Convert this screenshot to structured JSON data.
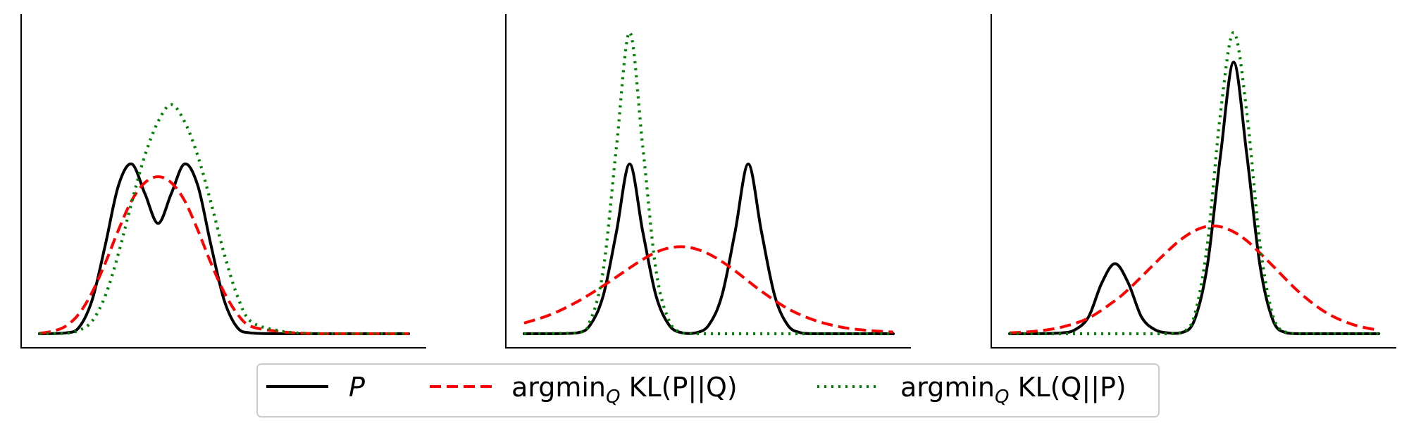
{
  "chart_data": [
    {
      "type": "line",
      "xlim": [
        -4,
        10
      ],
      "ylim": [
        0,
        0.72
      ],
      "grid": false,
      "axis_ticks": false,
      "series": [
        {
          "key": "P",
          "name": "P",
          "color": "#000000",
          "style": "solid",
          "x": [
            -4,
            -3,
            -2.5,
            -2,
            -1.5,
            -1,
            -0.5,
            0,
            0.5,
            1,
            1.5,
            2,
            2.5,
            3,
            3.5,
            4,
            5,
            6,
            7,
            8,
            9,
            10
          ],
          "y": [
            0,
            0.002,
            0.015,
            0.08,
            0.21,
            0.35,
            0.4,
            0.33,
            0.26,
            0.33,
            0.4,
            0.35,
            0.21,
            0.08,
            0.015,
            0.002,
            0,
            0,
            0,
            0,
            0,
            0
          ]
        },
        {
          "key": "PQ",
          "name": "argmin_Q KL(P||Q)",
          "color": "#ff0000",
          "style": "dashed",
          "x": [
            -4,
            -3.5,
            -3,
            -2.5,
            -2,
            -1.5,
            -1,
            -0.5,
            0,
            0.5,
            1,
            1.5,
            2,
            2.5,
            3,
            3.5,
            4,
            5,
            6,
            7,
            8,
            9,
            10
          ],
          "y": [
            0.001,
            0.006,
            0.018,
            0.047,
            0.098,
            0.167,
            0.245,
            0.314,
            0.356,
            0.37,
            0.356,
            0.314,
            0.245,
            0.167,
            0.098,
            0.047,
            0.018,
            0.006,
            0.001,
            0,
            0,
            0,
            0
          ]
        },
        {
          "key": "QP",
          "name": "argmin_Q KL(Q||P)",
          "color": "#008000",
          "style": "dotted",
          "x": [
            -4,
            -3,
            -2.5,
            -2,
            -1.5,
            -1,
            -0.5,
            0,
            0.5,
            1,
            1.5,
            2,
            2.5,
            3,
            3.5,
            4,
            5,
            6,
            7,
            8,
            9,
            10
          ],
          "y": [
            0,
            0.001,
            0.008,
            0.03,
            0.09,
            0.19,
            0.31,
            0.42,
            0.5,
            0.54,
            0.5,
            0.42,
            0.31,
            0.19,
            0.09,
            0.03,
            0.008,
            0.001,
            0,
            0,
            0,
            0
          ]
        }
      ]
    },
    {
      "type": "line",
      "xlim": [
        -4,
        10
      ],
      "ylim": [
        0,
        0.72
      ],
      "grid": false,
      "axis_ticks": false,
      "series": [
        {
          "key": "P",
          "name": "P",
          "color": "#000000",
          "style": "solid",
          "x": [
            -4,
            -3,
            -2,
            -1.5,
            -1,
            -0.5,
            0,
            0.5,
            1,
            1.5,
            2,
            2.5,
            3,
            3.5,
            4,
            4.5,
            5,
            5.5,
            6,
            6.5,
            7,
            8,
            9,
            10
          ],
          "y": [
            0,
            0,
            0.002,
            0.02,
            0.09,
            0.24,
            0.4,
            0.24,
            0.09,
            0.02,
            0.002,
            0.002,
            0.02,
            0.09,
            0.24,
            0.4,
            0.24,
            0.09,
            0.02,
            0.002,
            0,
            0,
            0,
            0
          ]
        },
        {
          "key": "PQ",
          "name": "argmin_Q KL(P||Q)",
          "color": "#ff0000",
          "style": "dashed",
          "x": [
            -4,
            -3,
            -2,
            -1,
            0,
            0.5,
            1,
            1.5,
            2,
            2.5,
            3,
            3.5,
            4,
            4.5,
            5,
            6,
            7,
            8,
            9,
            10
          ],
          "y": [
            0.025,
            0.045,
            0.075,
            0.113,
            0.155,
            0.175,
            0.192,
            0.202,
            0.205,
            0.2,
            0.188,
            0.17,
            0.148,
            0.124,
            0.1,
            0.059,
            0.032,
            0.016,
            0.008,
            0.004
          ]
        },
        {
          "key": "QP",
          "name": "argmin_Q KL(Q||P)",
          "color": "#008000",
          "style": "dotted",
          "x": [
            -4,
            -2,
            -1.5,
            -1,
            -0.5,
            0,
            0.5,
            1,
            1.5,
            2,
            2.5,
            3,
            4,
            6,
            8,
            10
          ],
          "y": [
            0,
            0.002,
            0.03,
            0.15,
            0.44,
            0.71,
            0.44,
            0.15,
            0.03,
            0.002,
            0,
            0,
            0,
            0,
            0,
            0
          ]
        }
      ]
    },
    {
      "type": "line",
      "xlim": [
        -4,
        10
      ],
      "ylim": [
        0,
        0.72
      ],
      "grid": false,
      "axis_ticks": false,
      "series": [
        {
          "key": "P",
          "name": "P",
          "color": "#000000",
          "style": "solid",
          "x": [
            -4,
            -3,
            -2,
            -1.5,
            -1,
            -0.5,
            0,
            0.5,
            1,
            1.5,
            2,
            2.5,
            3,
            3.5,
            4,
            4.5,
            5,
            5.5,
            6,
            6.5,
            7,
            8,
            9,
            10
          ],
          "y": [
            0,
            0,
            0.002,
            0.01,
            0.04,
            0.12,
            0.165,
            0.12,
            0.04,
            0.01,
            0.002,
            0.002,
            0.03,
            0.16,
            0.42,
            0.64,
            0.42,
            0.16,
            0.03,
            0.002,
            0,
            0,
            0,
            0
          ]
        },
        {
          "key": "PQ",
          "name": "argmin_Q KL(P||Q)",
          "color": "#ff0000",
          "style": "dashed",
          "x": [
            -4,
            -3,
            -2,
            -1,
            0,
            0.5,
            1,
            1.5,
            2,
            2.5,
            3,
            3.5,
            4,
            4.5,
            5,
            5.5,
            6,
            7,
            8,
            9,
            10
          ],
          "y": [
            0.002,
            0.006,
            0.016,
            0.037,
            0.078,
            0.104,
            0.134,
            0.165,
            0.195,
            0.222,
            0.242,
            0.253,
            0.252,
            0.24,
            0.219,
            0.19,
            0.159,
            0.097,
            0.05,
            0.022,
            0.008
          ]
        },
        {
          "key": "QP",
          "name": "argmin_Q KL(Q||P)",
          "color": "#008000",
          "style": "dotted",
          "x": [
            -4,
            -1,
            1,
            2,
            2.5,
            3,
            3.5,
            4,
            4.5,
            5,
            5.5,
            6,
            6.5,
            7,
            8,
            10
          ],
          "y": [
            0,
            0,
            0,
            0,
            0.003,
            0.04,
            0.21,
            0.52,
            0.71,
            0.52,
            0.21,
            0.04,
            0.003,
            0,
            0,
            0
          ]
        }
      ]
    }
  ],
  "legend": {
    "placement": "bottom-center",
    "entries": [
      {
        "key": "P",
        "label": "P"
      },
      {
        "key": "PQ",
        "main": "argmin",
        "sub": "Q",
        "rest": " KL(P||Q)"
      },
      {
        "key": "QP",
        "main": "argmin",
        "sub": "Q",
        "rest": " KL(Q||P)"
      }
    ]
  }
}
